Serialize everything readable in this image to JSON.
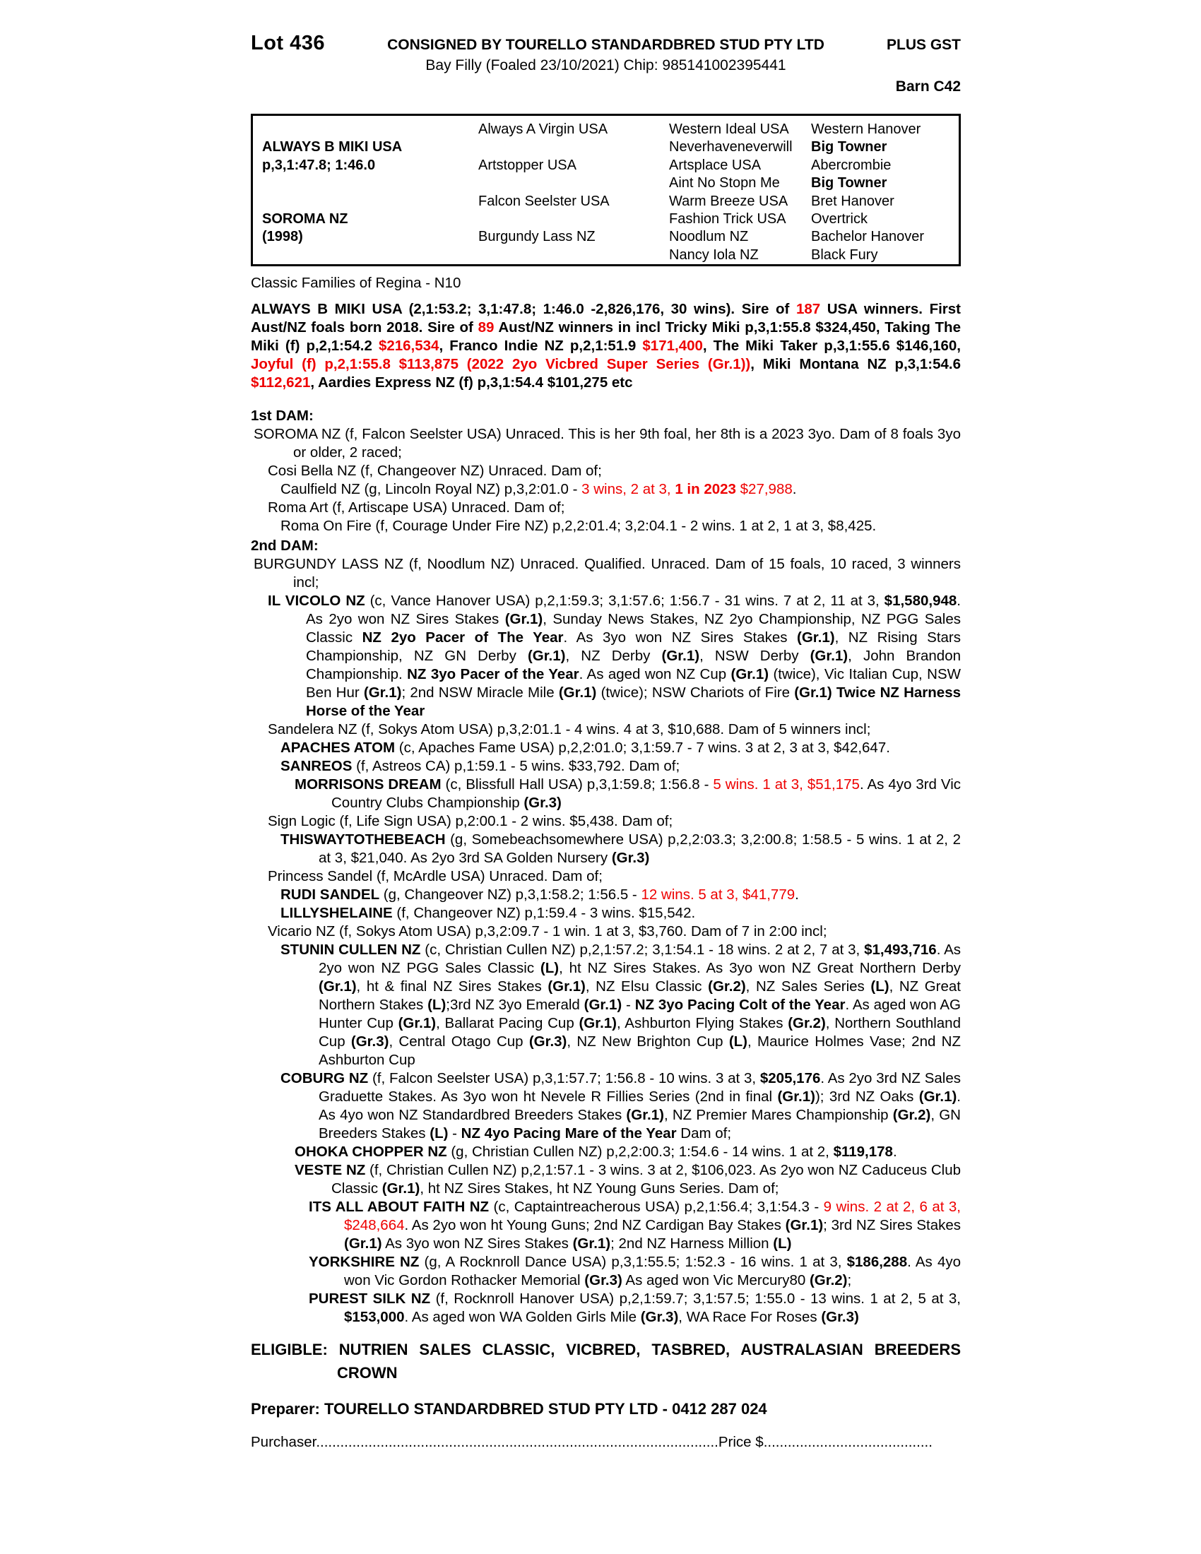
{
  "colors": {
    "red": "#ee0000",
    "text": "#000000",
    "background": "#ffffff"
  },
  "header": {
    "lot": "Lot 436",
    "consignor": "CONSIGNED BY TOURELLO STANDARDBRED STUD PTY LTD",
    "gst": "PLUS GST",
    "description": "Bay Filly (Foaled 23/10/2021) Chip: 985141002395441",
    "barn": "Barn C42"
  },
  "pedigree_table": {
    "subject": {
      "cells": [
        {
          "t": ""
        },
        {
          "t": "ALWAYS B MIKI USA",
          "b": 1
        },
        {
          "t": "p,3,1:47.8; 1:46.0",
          "b": 1
        },
        {
          "t": ""
        },
        {
          "t": ""
        },
        {
          "t": "SOROMA NZ",
          "b": 1
        },
        {
          "t": "(1998)",
          "b": 1
        },
        {
          "t": ""
        }
      ]
    },
    "parents": {
      "cells": [
        {
          "t": "Always A Virgin USA"
        },
        {
          "t": ""
        },
        {
          "t": "Artstopper USA"
        },
        {
          "t": ""
        },
        {
          "t": "Falcon Seelster USA"
        },
        {
          "t": ""
        },
        {
          "t": "Burgundy Lass NZ"
        },
        {
          "t": ""
        }
      ]
    },
    "grandparents": {
      "cells": [
        {
          "t": "Western Ideal USA"
        },
        {
          "t": "Neverhaveneverwill"
        },
        {
          "t": "Artsplace USA"
        },
        {
          "t": "Aint No Stopn Me"
        },
        {
          "t": "Warm Breeze USA"
        },
        {
          "t": "Fashion Trick USA"
        },
        {
          "t": "Noodlum NZ"
        },
        {
          "t": "Nancy Iola NZ"
        }
      ]
    },
    "greatgrandparents": {
      "cells": [
        {
          "t": "Western Hanover"
        },
        {
          "t": "Big Towner",
          "b": 1
        },
        {
          "t": "Abercrombie"
        },
        {
          "t": "Big Towner",
          "b": 1
        },
        {
          "t": "Bret Hanover"
        },
        {
          "t": "Overtrick"
        },
        {
          "t": "Bachelor Hanover"
        },
        {
          "t": "Black Fury"
        }
      ]
    }
  },
  "classic_note": "Classic Families of Regina - N10",
  "sire_para": [
    {
      "t": "ALWAYS B MIKI USA (2,1:53.2; 3,1:47.8; 1:46.0 -2,826,176, 30 wins). Sire of ",
      "b": 1
    },
    {
      "t": "187",
      "b": 1,
      "r": 1
    },
    {
      "t": " USA winners. First Aust/NZ foals born 2018. Sire of ",
      "b": 1
    },
    {
      "t": "89",
      "b": 1,
      "r": 1
    },
    {
      "t": " Aust/NZ winners in incl Tricky Miki p,3,1:55.8 $324,450, Taking The Miki (f) p,2,1:54.2 ",
      "b": 1
    },
    {
      "t": "$216,534",
      "b": 1,
      "r": 1
    },
    {
      "t": ", Franco Indie NZ p,2,1:51.9 ",
      "b": 1
    },
    {
      "t": "$171,400",
      "b": 1,
      "r": 1
    },
    {
      "t": ", The Miki Taker p,3,1:55.6 $146,160, ",
      "b": 1
    },
    {
      "t": "Joyful (f) p,2,1:55.8 $113,875 (2022 2yo Vicbred Super Series (Gr.1))",
      "b": 1,
      "r": 1
    },
    {
      "t": ", Miki Montana NZ p,3,1:54.6 ",
      "b": 1
    },
    {
      "t": "$112,621",
      "b": 1,
      "r": 1
    },
    {
      "t": ", Aardies Express NZ (f) p,3,1:54.4 $101,275 etc",
      "b": 1
    }
  ],
  "family": [
    {
      "name": "heading-1st-dam",
      "level": "h",
      "spans": [
        {
          "t": "1st DAM:",
          "b": 1
        }
      ]
    },
    {
      "name": "soroma-line",
      "level": "0",
      "spans": [
        {
          "t": "SOROMA NZ (f, Falcon Seelster USA) Unraced. This is her 9th foal, her 8th is a 2023 3yo. Dam of 8 foals 3yo or older, 2 raced;"
        }
      ]
    },
    {
      "name": "cosi-bella-line",
      "level": "1",
      "spans": [
        {
          "t": "Cosi Bella NZ (f, Changeover NZ) Unraced. Dam of;"
        }
      ]
    },
    {
      "name": "caulfield-line",
      "level": "2",
      "spans": [
        {
          "t": "Caulfield NZ (g, Lincoln Royal NZ) p,3,2:01.0 - "
        },
        {
          "t": "3 wins, 2 at 3, ",
          "r": 1
        },
        {
          "t": "1 in 2023",
          "r": 1,
          "b": 1
        },
        {
          "t": " $27,988",
          "r": 1
        },
        {
          "t": "."
        }
      ]
    },
    {
      "name": "roma-art-line",
      "level": "1",
      "spans": [
        {
          "t": "Roma Art (f, Artiscape USA) Unraced. Dam of;"
        }
      ]
    },
    {
      "name": "roma-on-fire-line",
      "level": "2",
      "spans": [
        {
          "t": "Roma On Fire (f, Courage Under Fire NZ) p,2,2:01.4; 3,2:04.1 - 2 wins. 1 at 2, 1 at 3, $8,425."
        }
      ]
    },
    {
      "name": "heading-2nd-dam",
      "level": "h",
      "spans": [
        {
          "t": "2nd DAM:",
          "b": 1
        }
      ]
    },
    {
      "name": "burgundy-lass-line",
      "level": "0",
      "spans": [
        {
          "t": "BURGUNDY LASS NZ (f, Noodlum NZ) Unraced. Qualified. Unraced. Dam of 15 foals, 10 raced, 3 winners incl;"
        }
      ]
    },
    {
      "name": "il-vicolo-line",
      "level": "1",
      "spans": [
        {
          "t": "IL VICOLO NZ",
          "b": 1
        },
        {
          "t": " (c, Vance Hanover USA) p,2,1:59.3; 3,1:57.6; 1:56.7 - 31 wins. 7 at 2, 11 at 3, "
        },
        {
          "t": "$1,580,948",
          "b": 1
        },
        {
          "t": ". As 2yo won NZ Sires Stakes "
        },
        {
          "t": "(Gr.1)",
          "b": 1
        },
        {
          "t": ", Sunday News Stakes, NZ 2yo Championship, NZ PGG Sales Classic "
        },
        {
          "t": "NZ 2yo Pacer of The Year",
          "b": 1
        },
        {
          "t": ". As 3yo won NZ Sires Stakes "
        },
        {
          "t": "(Gr.1)",
          "b": 1
        },
        {
          "t": ", NZ Rising Stars Championship, NZ GN Derby "
        },
        {
          "t": "(Gr.1)",
          "b": 1
        },
        {
          "t": ", NZ Derby "
        },
        {
          "t": "(Gr.1)",
          "b": 1
        },
        {
          "t": ", NSW Derby "
        },
        {
          "t": "(Gr.1)",
          "b": 1
        },
        {
          "t": ", John Brandon Championship. "
        },
        {
          "t": "NZ 3yo Pacer of the Year",
          "b": 1
        },
        {
          "t": ". As aged won NZ Cup "
        },
        {
          "t": "(Gr.1)",
          "b": 1
        },
        {
          "t": " (twice), Vic Italian Cup, NSW Ben Hur "
        },
        {
          "t": "(Gr.1)",
          "b": 1
        },
        {
          "t": "; 2nd NSW Miracle Mile "
        },
        {
          "t": "(Gr.1)",
          "b": 1
        },
        {
          "t": " (twice); NSW Chariots of Fire "
        },
        {
          "t": "(Gr.1) Twice NZ Harness Horse of the Year",
          "b": 1
        }
      ]
    },
    {
      "name": "sandelera-line",
      "level": "1",
      "spans": [
        {
          "t": "Sandelera NZ (f, Sokys Atom USA) p,3,2:01.1 - 4 wins. 4 at 3, $10,688. Dam of 5 winners incl;"
        }
      ]
    },
    {
      "name": "apaches-atom-line",
      "level": "2",
      "spans": [
        {
          "t": "APACHES ATOM",
          "b": 1
        },
        {
          "t": " (c, Apaches Fame USA) p,2,2:01.0; 3,1:59.7 - 7 wins. 3 at 2, 3 at 3, $42,647."
        }
      ]
    },
    {
      "name": "sanreos-line",
      "level": "2",
      "spans": [
        {
          "t": "SANREOS",
          "b": 1
        },
        {
          "t": " (f, Astreos CA) p,1:59.1 - 5 wins. $33,792. Dam of;"
        }
      ]
    },
    {
      "name": "morrisons-dream-line",
      "level": "3",
      "spans": [
        {
          "t": "MORRISONS DREAM",
          "b": 1
        },
        {
          "t": " (c, Blissfull Hall USA) p,3,1:59.8; 1:56.8 - "
        },
        {
          "t": "5 wins. 1 at 3, $51,175",
          "r": 1
        },
        {
          "t": ". As 4yo 3rd Vic Country Clubs Championship "
        },
        {
          "t": "(Gr.3)",
          "b": 1
        }
      ]
    },
    {
      "name": "sign-logic-line",
      "level": "1",
      "spans": [
        {
          "t": "Sign Logic (f, Life Sign USA) p,2:00.1 - 2 wins. $5,438. Dam of;"
        }
      ]
    },
    {
      "name": "thiswaytothebeach-line",
      "level": "2",
      "spans": [
        {
          "t": "THISWAYTOTHEBEACH",
          "b": 1
        },
        {
          "t": " (g, Somebeachsomewhere USA) p,2,2:03.3; 3,2:00.8; 1:58.5 - 5 wins. 1 at 2, 2 at 3, $21,040. As 2yo 3rd SA Golden Nursery "
        },
        {
          "t": "(Gr.3)",
          "b": 1
        }
      ]
    },
    {
      "name": "princess-sandel-line",
      "level": "1",
      "spans": [
        {
          "t": "Princess Sandel (f, McArdle USA) Unraced. Dam of;"
        }
      ]
    },
    {
      "name": "rudi-sandel-line",
      "level": "2",
      "spans": [
        {
          "t": "RUDI SANDEL",
          "b": 1
        },
        {
          "t": " (g, Changeover NZ) p,3,1:58.2; 1:56.5 - "
        },
        {
          "t": "12 wins. 5 at 3, $41,779",
          "r": 1
        },
        {
          "t": "."
        }
      ]
    },
    {
      "name": "lillyshelaine-line",
      "level": "2",
      "spans": [
        {
          "t": "LILLYSHELAINE",
          "b": 1
        },
        {
          "t": " (f, Changeover NZ) p,1:59.4 - 3 wins. $15,542."
        }
      ]
    },
    {
      "name": "vicario-line",
      "level": "1",
      "spans": [
        {
          "t": "Vicario NZ (f, Sokys Atom USA) p,3,2:09.7 - 1 win. 1 at 3, $3,760. Dam of 7 in 2:00 incl;"
        }
      ]
    },
    {
      "name": "stunin-cullen-line",
      "level": "2",
      "spans": [
        {
          "t": "STUNIN CULLEN NZ",
          "b": 1
        },
        {
          "t": " (c, Christian Cullen NZ) p,2,1:57.2; 3,1:54.1 - 18 wins. 2 at 2, 7 at 3, "
        },
        {
          "t": "$1,493,716",
          "b": 1
        },
        {
          "t": ". As 2yo won NZ PGG Sales Classic "
        },
        {
          "t": "(L)",
          "b": 1
        },
        {
          "t": ", ht NZ Sires Stakes. As 3yo won NZ Great Northern Derby "
        },
        {
          "t": "(Gr.1)",
          "b": 1
        },
        {
          "t": ", ht & final NZ Sires Stakes "
        },
        {
          "t": "(Gr.1)",
          "b": 1
        },
        {
          "t": ", NZ Elsu Classic "
        },
        {
          "t": "(Gr.2)",
          "b": 1
        },
        {
          "t": ", NZ Sales Series "
        },
        {
          "t": "(L)",
          "b": 1
        },
        {
          "t": ", NZ Great Northern Stakes "
        },
        {
          "t": "(L)",
          "b": 1
        },
        {
          "t": ";3rd NZ 3yo Emerald "
        },
        {
          "t": "(Gr.1)",
          "b": 1
        },
        {
          "t": " - "
        },
        {
          "t": "NZ 3yo Pacing Colt of the Year",
          "b": 1
        },
        {
          "t": ". As aged won AG Hunter Cup "
        },
        {
          "t": "(Gr.1)",
          "b": 1
        },
        {
          "t": ", Ballarat Pacing Cup "
        },
        {
          "t": "(Gr.1)",
          "b": 1
        },
        {
          "t": ", Ashburton Flying Stakes "
        },
        {
          "t": "(Gr.2)",
          "b": 1
        },
        {
          "t": ", Northern Southland Cup "
        },
        {
          "t": "(Gr.3)",
          "b": 1
        },
        {
          "t": ", Central Otago Cup "
        },
        {
          "t": "(Gr.3)",
          "b": 1
        },
        {
          "t": ", NZ New Brighton Cup "
        },
        {
          "t": "(L)",
          "b": 1
        },
        {
          "t": ", Maurice Holmes Vase; 2nd NZ Ashburton Cup"
        }
      ]
    },
    {
      "name": "coburg-line",
      "level": "2",
      "spans": [
        {
          "t": "COBURG NZ",
          "b": 1
        },
        {
          "t": " (f, Falcon Seelster USA) p,3,1:57.7; 1:56.8 - 10 wins. 3 at 3, "
        },
        {
          "t": "$205,176",
          "b": 1
        },
        {
          "t": ". As 2yo 3rd NZ Sales Graduette Stakes. As 3yo won ht Nevele R Fillies Series (2nd in final "
        },
        {
          "t": "(Gr.1)",
          "b": 1
        },
        {
          "t": "); 3rd NZ Oaks "
        },
        {
          "t": "(Gr.1)",
          "b": 1
        },
        {
          "t": ". As 4yo won NZ Standardbred Breeders Stakes "
        },
        {
          "t": "(Gr.1)",
          "b": 1
        },
        {
          "t": ", NZ Premier Mares Championship "
        },
        {
          "t": "(Gr.2)",
          "b": 1
        },
        {
          "t": ", GN Breeders Stakes "
        },
        {
          "t": "(L)",
          "b": 1
        },
        {
          "t": " - "
        },
        {
          "t": "NZ 4yo Pacing Mare of the Year",
          "b": 1
        },
        {
          "t": " Dam of;"
        }
      ]
    },
    {
      "name": "ohoka-chopper-line",
      "level": "3",
      "spans": [
        {
          "t": "OHOKA CHOPPER NZ",
          "b": 1
        },
        {
          "t": " (g, Christian Cullen NZ) p,2,2:00.3; 1:54.6 - 14 wins. 1 at 2, "
        },
        {
          "t": "$119,178",
          "b": 1
        },
        {
          "t": "."
        }
      ]
    },
    {
      "name": "veste-line",
      "level": "3",
      "spans": [
        {
          "t": "VESTE NZ",
          "b": 1
        },
        {
          "t": " (f, Christian Cullen NZ) p,2,1:57.1 - 3 wins. 3 at 2, $106,023. As 2yo won NZ Caduceus Club Classic "
        },
        {
          "t": "(Gr.1)",
          "b": 1
        },
        {
          "t": ", ht NZ Sires Stakes, ht NZ Young Guns Series. Dam of;"
        }
      ]
    },
    {
      "name": "its-all-about-faith-line",
      "level": "4",
      "spans": [
        {
          "t": "ITS ALL ABOUT FAITH NZ",
          "b": 1
        },
        {
          "t": " (c, Captaintreacherous USA) p,2,1:56.4; 3,1:54.3 - "
        },
        {
          "t": "9 wins. 2 at 2, 6 at 3, $248,664",
          "r": 1
        },
        {
          "t": ". As 2yo won ht Young Guns; 2nd NZ Cardigan Bay Stakes "
        },
        {
          "t": "(Gr.1)",
          "b": 1
        },
        {
          "t": "; 3rd NZ Sires Stakes "
        },
        {
          "t": "(Gr.1)",
          "b": 1
        },
        {
          "t": " As 3yo won NZ Sires Stakes "
        },
        {
          "t": "(Gr.1)",
          "b": 1
        },
        {
          "t": "; 2nd NZ Harness Million "
        },
        {
          "t": "(L)",
          "b": 1
        }
      ]
    },
    {
      "name": "yorkshire-line",
      "level": "4",
      "spans": [
        {
          "t": "YORKSHIRE NZ",
          "b": 1
        },
        {
          "t": " (g, A Rocknroll Dance USA) p,3,1:55.5; 1:52.3 - 16 wins. 1 at 3, "
        },
        {
          "t": "$186,288",
          "b": 1
        },
        {
          "t": ". As 4yo won Vic Gordon Rothacker Memorial "
        },
        {
          "t": "(Gr.3)",
          "b": 1
        },
        {
          "t": " As aged won Vic Mercury80 "
        },
        {
          "t": "(Gr.2)",
          "b": 1
        },
        {
          "t": ";"
        }
      ]
    },
    {
      "name": "purest-silk-line",
      "level": "4",
      "spans": [
        {
          "t": "PUREST SILK NZ",
          "b": 1
        },
        {
          "t": " (f, Rocknroll Hanover USA) p,2,1:59.7; 3,1:57.5; 1:55.0 - 13 wins. 1 at 2, 5 at 3, "
        },
        {
          "t": "$153,000",
          "b": 1
        },
        {
          "t": ". As aged won WA Golden Girls Mile "
        },
        {
          "t": "(Gr.3)",
          "b": 1
        },
        {
          "t": ", WA Race For Roses "
        },
        {
          "t": "(Gr.3)",
          "b": 1
        }
      ]
    }
  ],
  "eligible": [
    {
      "t": "ELIGIBLE: NUTRIEN SALES CLASSIC, VICBRED, TASBRED, AUSTRALASIAN BREEDERS CROWN",
      "b": 1
    }
  ],
  "preparer": "Preparer: TOURELLO STANDARDBRED STUD PTY LTD - 0412 287 024",
  "purchaser": {
    "label": "Purchaser",
    "dots1": "....................................................................................................",
    "price_label": "Price $",
    "dots2": ".........................................."
  }
}
